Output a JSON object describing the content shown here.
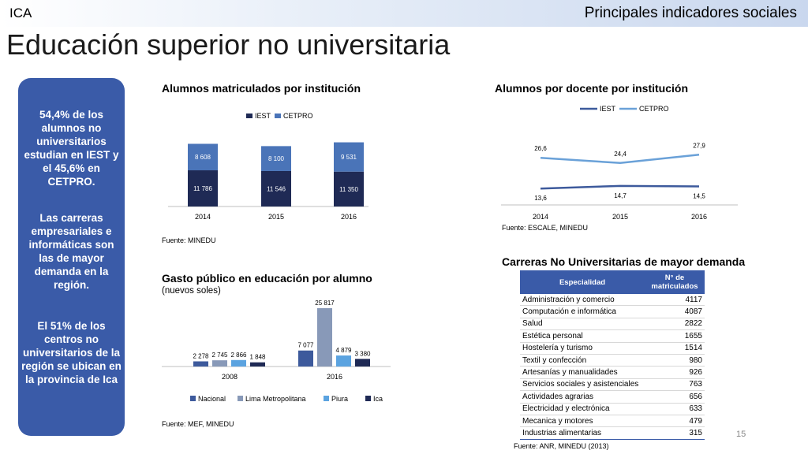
{
  "header": {
    "brand": "ICA",
    "section": "Principales indicadores sociales"
  },
  "page_title": "Educación superior no universitaria",
  "sidebar": {
    "note1": "54,4% de los alumnos no universitarios estudian en IEST y el 45,6% en CETPRO.",
    "note2": "Las carreras empresariales e informáticas son las de mayor demanda en la región.",
    "note3": "El 51% de los centros no universitarios de la región se ubican en la provincia de Ica"
  },
  "colors": {
    "iest": "#1f2a55",
    "cetpro": "#4a74b8",
    "nacional": "#3d5a9c",
    "lima": "#8899b8",
    "piura": "#5ba3e0",
    "ica": "#1f2a55",
    "line_iest": "#3d5a9c",
    "line_cetpro": "#6aa1d8",
    "box": "#3a5ba8"
  },
  "chart_data": [
    {
      "type": "bar",
      "title": "Alumnos matriculados por institución",
      "source": "Fuente: MINEDU",
      "categories": [
        "2014",
        "2015",
        "2016"
      ],
      "series": [
        {
          "name": "IEST",
          "values": [
            11786,
            11546,
            11350
          ],
          "labels": [
            "11 786",
            "11 546",
            "11 350"
          ]
        },
        {
          "name": "CETPRO",
          "values": [
            8608,
            8100,
            9531
          ],
          "labels": [
            "8 608",
            "8 100",
            "9 531"
          ]
        }
      ],
      "stacked": true,
      "legend_position": "top"
    },
    {
      "type": "line",
      "title": "Alumnos por docente por institución",
      "source": "Fuente: ESCALE, MINEDU",
      "categories": [
        "2014",
        "2015",
        "2016"
      ],
      "series": [
        {
          "name": "IEST",
          "values": [
            13.6,
            14.7,
            14.5
          ],
          "labels": [
            "13,6",
            "14,7",
            "14,5"
          ]
        },
        {
          "name": "CETPRO",
          "values": [
            26.6,
            24.4,
            27.9
          ],
          "labels": [
            "26,6",
            "24,4",
            "27,9"
          ]
        }
      ],
      "legend_position": "top"
    },
    {
      "type": "bar",
      "title": "Gasto público en educación por alumno",
      "subtitle": "(nuevos soles)",
      "source": "Fuente: MEF, MINEDU",
      "categories": [
        "2008",
        "2016"
      ],
      "series": [
        {
          "name": "Nacional",
          "values": [
            2278,
            7077
          ],
          "labels": [
            "2 278",
            "7 077"
          ]
        },
        {
          "name": "Lima Metropolitana",
          "values": [
            2745,
            25817
          ],
          "labels": [
            "2 745",
            "25 817"
          ]
        },
        {
          "name": "Piura",
          "values": [
            2866,
            4879
          ],
          "labels": [
            "2 866",
            "4 879"
          ]
        },
        {
          "name": "Ica",
          "values": [
            1848,
            3380
          ],
          "labels": [
            "1 848",
            "3 380"
          ]
        }
      ],
      "legend_position": "bottom"
    },
    {
      "type": "table",
      "title": "Carreras No Universitarias de mayor demanda",
      "source": "Fuente: ANR, MINEDU (2013)",
      "columns": [
        "Especialidad",
        "N° de matriculados"
      ],
      "rows": [
        [
          "Administración y comercio",
          "4117"
        ],
        [
          "Computación e informática",
          "4087"
        ],
        [
          "Salud",
          "2822"
        ],
        [
          "Estética personal",
          "1655"
        ],
        [
          "Hostelería y turismo",
          "1514"
        ],
        [
          "Textil y confección",
          "980"
        ],
        [
          "Artesanías y manualidades",
          "926"
        ],
        [
          "Servicios sociales y asistenciales",
          "763"
        ],
        [
          "Actividades agrarias",
          "656"
        ],
        [
          "Electricidad y electrónica",
          "633"
        ],
        [
          "Mecanica y motores",
          "479"
        ],
        [
          "Industrias alimentarias",
          "315"
        ]
      ]
    }
  ],
  "page_number": "15"
}
